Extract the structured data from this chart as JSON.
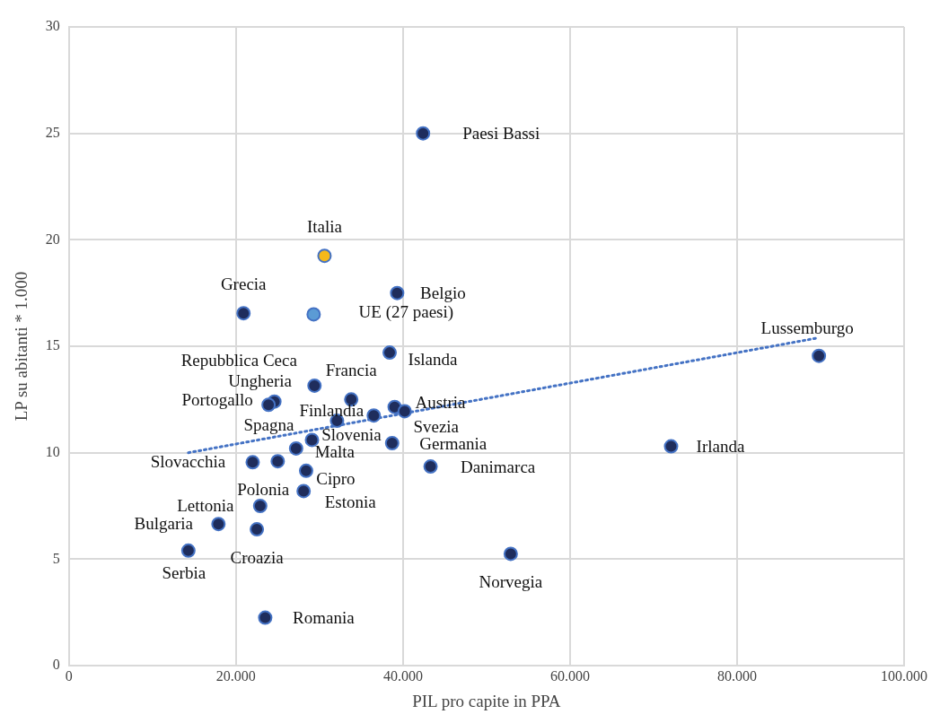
{
  "chart_data": {
    "type": "scatter",
    "xlabel": "PIL pro capite in PPA",
    "ylabel": "LP su abitanti * 1.000",
    "xlim": [
      0,
      100000
    ],
    "xticks": [
      {
        "value": 0,
        "label": "0"
      },
      {
        "value": 20000,
        "label": "20.000"
      },
      {
        "value": 40000,
        "label": "40.000"
      },
      {
        "value": 60000,
        "label": "60.000"
      },
      {
        "value": 80000,
        "label": "80.000"
      },
      {
        "value": 100000,
        "label": "100.000"
      }
    ],
    "ylim": [
      0,
      30
    ],
    "yticks": [
      0,
      5,
      10,
      15,
      20,
      25,
      30
    ],
    "grid": true,
    "legend": false,
    "marker": "circle",
    "series": [
      {
        "x": [
          42400,
          30600,
          39300,
          29300,
          20900,
          38400,
          89800,
          29400,
          33800,
          24600,
          23900,
          39000,
          40200,
          36500,
          32100,
          29100,
          27200,
          38700,
          22000,
          25000,
          28400,
          43300,
          28100,
          22900,
          17900,
          22500,
          14300,
          23500,
          52900,
          72100
        ],
        "values": [
          25.0,
          19.25,
          17.5,
          16.5,
          16.55,
          14.7,
          14.55,
          13.15,
          12.5,
          12.4,
          12.25,
          12.15,
          11.95,
          11.75,
          11.5,
          10.6,
          10.2,
          10.45,
          9.55,
          9.6,
          9.15,
          9.35,
          8.2,
          7.5,
          6.65,
          6.4,
          5.4,
          2.25,
          5.25,
          10.3
        ],
        "colors": [
          "#1f2d5c",
          "#f4b91a",
          "#1f2d5c",
          "#5b9bd5",
          "#1f2d5c",
          "#1f2d5c",
          "#1f2d5c",
          "#1f2d5c",
          "#1f2d5c",
          "#1f2d5c",
          "#1f2d5c",
          "#1f2d5c",
          "#1f2d5c",
          "#1f2d5c",
          "#1f2d5c",
          "#1f2d5c",
          "#1f2d5c",
          "#1f2d5c",
          "#1f2d5c",
          "#1f2d5c",
          "#1f2d5c",
          "#1f2d5c",
          "#1f2d5c",
          "#1f2d5c",
          "#1f2d5c",
          "#1f2d5c",
          "#1f2d5c",
          "#1f2d5c",
          "#1f2d5c",
          "#1f2d5c"
        ]
      },
      {
        "type": "line",
        "color": "#4472c4",
        "line_style": "dotted",
        "marker": "none",
        "x": [
          14300,
          89800
        ],
        "values": [
          10.0,
          15.4
        ]
      }
    ],
    "annotations": [
      {
        "text": "Paesi Bassi",
        "x": 42400,
        "y": 25.0
      },
      {
        "text": "Italia",
        "x": 30600,
        "y": 19.25
      },
      {
        "text": "Grecia",
        "x": 20900,
        "y": 16.55
      },
      {
        "text": "Belgio",
        "x": 39300,
        "y": 17.5
      },
      {
        "text": "UE (27 paesi)",
        "x": 29300,
        "y": 16.5
      },
      {
        "text": "Lussemburgo",
        "x": 89800,
        "y": 14.55
      },
      {
        "text": "Islanda",
        "x": 38400,
        "y": 14.7
      },
      {
        "text": "Repubblica Ceca",
        "x": 29400,
        "y": 13.15
      },
      {
        "text": "Francia",
        "x": 33800,
        "y": 12.5
      },
      {
        "text": "Ungheria",
        "x": 24600,
        "y": 12.4
      },
      {
        "text": "Portogallo",
        "x": 23900,
        "y": 12.25
      },
      {
        "text": "Austria",
        "x": 39000,
        "y": 12.15
      },
      {
        "text": "Finlandia",
        "x": 36500,
        "y": 11.75
      },
      {
        "text": "Svezia",
        "x": 40200,
        "y": 11.95
      },
      {
        "text": "Spagna",
        "x": 32100,
        "y": 11.5
      },
      {
        "text": "Slovenia",
        "x": 29100,
        "y": 10.6
      },
      {
        "text": "Germania",
        "x": 38700,
        "y": 10.45
      },
      {
        "text": "Irlanda",
        "x": 72100,
        "y": 10.3
      },
      {
        "text": "Malta",
        "x": 27200,
        "y": 10.2
      },
      {
        "text": "Slovacchia",
        "x": 22000,
        "y": 9.55
      },
      {
        "text": "Danimarca",
        "x": 43300,
        "y": 9.35
      },
      {
        "text": "Cipro",
        "x": 28400,
        "y": 9.15
      },
      {
        "text": "Polonia",
        "x": 28100,
        "y": 8.2
      },
      {
        "text": "Estonia",
        "x": 28100,
        "y": 8.2
      },
      {
        "text": "Lettonia",
        "x": 22900,
        "y": 7.5
      },
      {
        "text": "Bulgaria",
        "x": 17900,
        "y": 6.65
      },
      {
        "text": "Croazia",
        "x": 22500,
        "y": 6.4
      },
      {
        "text": "Serbia",
        "x": 14300,
        "y": 5.4
      },
      {
        "text": "Norvegia",
        "x": 52900,
        "y": 5.25
      },
      {
        "text": "Romania",
        "x": 23500,
        "y": 2.25
      }
    ]
  }
}
